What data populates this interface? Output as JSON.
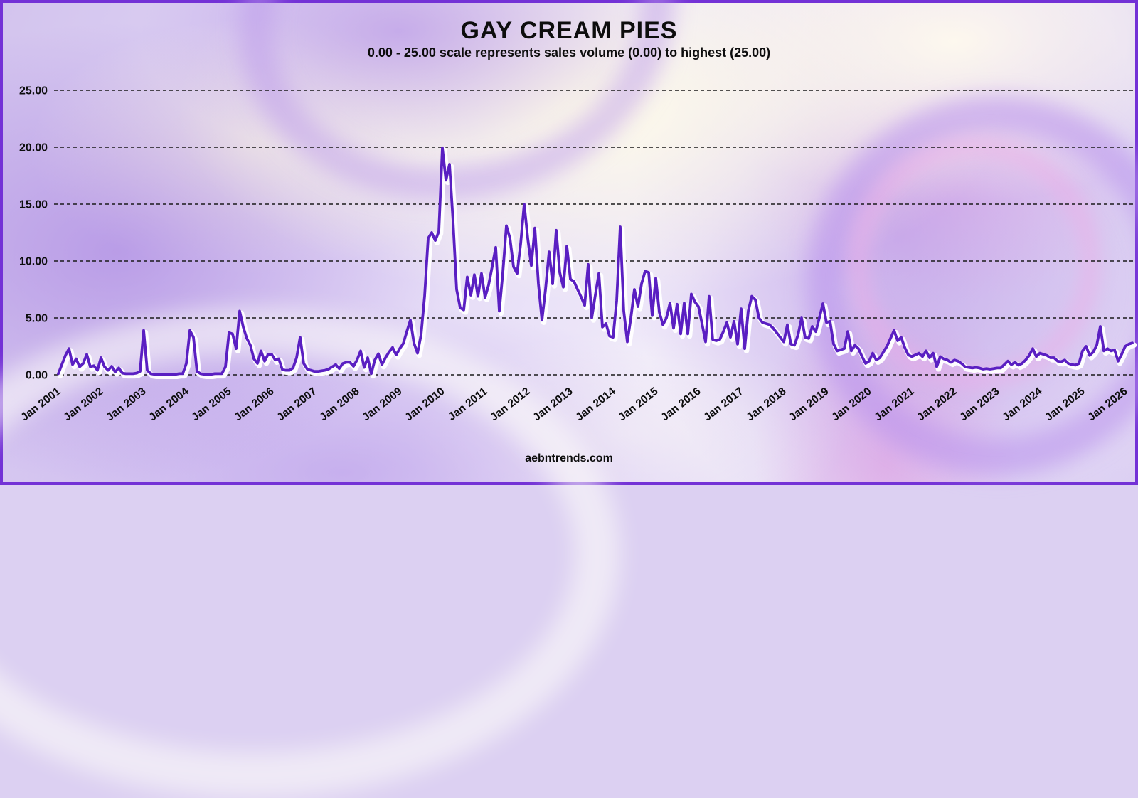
{
  "page": {
    "title": "GAY CREAM PIES",
    "subtitle": "0.00 - 25.00 scale represents sales volume (0.00) to highest (25.00)",
    "watermark": "aebntrends.com"
  },
  "colors": {
    "line": "#5a1fc2",
    "line_halo": "#ffffff",
    "grid": "#1a1a1a",
    "text": "#0d0d0d",
    "border": "#7331d6"
  },
  "chart_data": {
    "type": "line",
    "title": "GAY CREAM PIES",
    "subtitle": "0.00 - 25.00 scale represents sales volume (0.00) to highest (25.00)",
    "x_unit": "month",
    "x_range": [
      "Jan 2001",
      "Mar 2026"
    ],
    "x_tick_labels": [
      "Jan 2001",
      "Jan 2002",
      "Jan 2003",
      "Jan 2004",
      "Jan 2005",
      "Jan 2006",
      "Jan 2007",
      "Jan 2008",
      "Jan 2009",
      "Jan 2010",
      "Jan 2011",
      "Jan 2012",
      "Jan 2013",
      "Jan 2014",
      "Jan 2015",
      "Jan 2016",
      "Jan 2017",
      "Jan 2018",
      "Jan 2019",
      "Jan 2020",
      "Jan 2021",
      "Jan 2022",
      "Jan 2023",
      "Jan 2024",
      "Jan 2025",
      "Jan 2026"
    ],
    "ylim": [
      0,
      25
    ],
    "y_ticks": [
      0,
      5,
      10,
      15,
      20,
      25
    ],
    "y_tick_labels": [
      "0.00",
      "5.00",
      "10.00",
      "15.00",
      "20.00",
      "25.00"
    ],
    "grid": "horizontal-dashed",
    "legend": "none",
    "series": [
      {
        "name": "sales volume",
        "values": [
          0.1,
          0.9,
          1.7,
          2.3,
          0.9,
          1.4,
          0.7,
          1.0,
          1.8,
          0.7,
          0.8,
          0.4,
          1.5,
          0.7,
          0.4,
          0.75,
          0.25,
          0.6,
          0.15,
          0.1,
          0.1,
          0.1,
          0.15,
          0.3,
          3.9,
          0.4,
          0.1,
          0.05,
          0.05,
          0.05,
          0.05,
          0.05,
          0.05,
          0.05,
          0.1,
          0.1,
          1.0,
          3.9,
          3.3,
          0.3,
          0.1,
          0.05,
          0.05,
          0.05,
          0.1,
          0.1,
          0.1,
          0.7,
          3.7,
          3.6,
          2.3,
          5.6,
          4.2,
          3.2,
          2.6,
          1.4,
          1.0,
          2.1,
          1.2,
          1.8,
          1.8,
          1.3,
          1.4,
          0.45,
          0.4,
          0.4,
          0.6,
          1.5,
          3.3,
          1.0,
          0.5,
          0.4,
          0.3,
          0.3,
          0.35,
          0.4,
          0.5,
          0.7,
          0.9,
          0.55,
          1.0,
          1.1,
          1.1,
          0.75,
          1.3,
          2.1,
          0.65,
          1.5,
          0.1,
          1.3,
          1.85,
          0.9,
          1.5,
          2.0,
          2.4,
          1.75,
          2.3,
          2.75,
          3.8,
          4.8,
          2.8,
          1.9,
          3.5,
          6.9,
          12.0,
          12.5,
          11.8,
          12.6,
          19.95,
          17.1,
          18.5,
          13.5,
          7.5,
          5.9,
          5.7,
          8.6,
          7.0,
          8.8,
          6.9,
          8.9,
          6.8,
          7.9,
          9.5,
          11.2,
          5.6,
          9.0,
          13.1,
          12.0,
          9.5,
          8.9,
          11.5,
          15.0,
          12.0,
          9.6,
          12.9,
          8.0,
          4.8,
          7.5,
          10.8,
          8.0,
          12.7,
          9.0,
          7.7,
          11.3,
          8.4,
          8.2,
          7.5,
          6.85,
          6.1,
          9.7,
          5.0,
          7.0,
          8.9,
          4.2,
          4.5,
          3.4,
          3.3,
          6.5,
          13.0,
          5.6,
          2.9,
          5.0,
          7.5,
          6.0,
          8.0,
          9.1,
          9.0,
          5.2,
          8.5,
          5.5,
          4.4,
          5.0,
          6.3,
          4.1,
          6.2,
          3.6,
          6.3,
          3.6,
          7.1,
          6.4,
          6.0,
          4.5,
          2.9,
          6.9,
          3.1,
          3.0,
          3.1,
          3.8,
          4.6,
          3.3,
          4.7,
          2.7,
          5.8,
          2.3,
          5.6,
          6.9,
          6.6,
          5.0,
          4.6,
          4.5,
          4.4,
          4.1,
          3.7,
          3.3,
          2.9,
          4.4,
          2.7,
          2.6,
          3.5,
          5.0,
          3.3,
          3.2,
          4.25,
          3.8,
          5.0,
          6.25,
          4.6,
          4.7,
          2.7,
          2.1,
          2.2,
          2.3,
          3.8,
          2.1,
          2.6,
          2.3,
          1.6,
          1.0,
          1.2,
          1.9,
          1.3,
          1.5,
          2.0,
          2.5,
          3.2,
          3.9,
          3.0,
          3.3,
          2.4,
          1.75,
          1.6,
          1.75,
          1.9,
          1.6,
          2.1,
          1.5,
          1.9,
          0.7,
          1.6,
          1.4,
          1.3,
          1.1,
          1.3,
          1.2,
          1.0,
          0.7,
          0.65,
          0.6,
          0.65,
          0.6,
          0.5,
          0.55,
          0.5,
          0.55,
          0.6,
          0.6,
          0.9,
          1.2,
          0.9,
          1.1,
          0.85,
          1.0,
          1.3,
          1.7,
          2.3,
          1.6,
          1.9,
          1.8,
          1.7,
          1.5,
          1.5,
          1.2,
          1.15,
          1.3,
          1.0,
          0.9,
          0.85,
          1.0,
          2.1,
          2.5,
          1.7,
          2.0,
          2.6,
          4.25,
          2.1,
          2.3,
          2.1,
          2.2,
          1.2,
          1.8,
          2.5,
          2.7,
          2.8
        ]
      }
    ]
  }
}
